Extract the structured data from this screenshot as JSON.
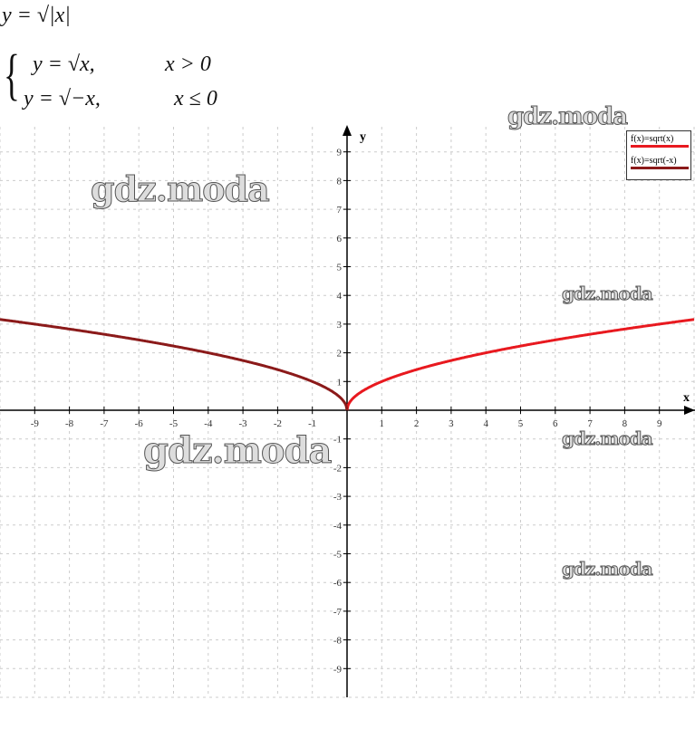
{
  "formulas": {
    "main": "y = √|x|",
    "case1_expr": "y = √x,",
    "case1_cond": "x > 0",
    "case2_expr": "y = √−x,",
    "case2_cond": "x ≤ 0"
  },
  "watermark": "gdz.moda",
  "chart_data": {
    "type": "line",
    "xlabel": "x",
    "ylabel": "y",
    "xlim": [
      -10,
      10
    ],
    "ylim": [
      -10,
      9.5
    ],
    "grid": true,
    "legend_placement": "top-right",
    "x_ticks": [
      -9,
      -8,
      -7,
      -6,
      -5,
      -4,
      -3,
      -2,
      -1,
      1,
      2,
      3,
      4,
      5,
      6,
      7,
      8,
      9
    ],
    "y_ticks": [
      -9,
      -8,
      -7,
      -6,
      -5,
      -4,
      -3,
      -2,
      -1,
      1,
      2,
      3,
      4,
      5,
      6,
      7,
      8,
      9
    ],
    "series": [
      {
        "name": "f(x)=sqrt(x)",
        "color": "#e8191f",
        "function": "sqrt(x)",
        "domain": [
          0,
          10
        ]
      },
      {
        "name": "f(x)=sqrt(-x)",
        "color": "#8b1a1a",
        "function": "sqrt(-x)",
        "domain": [
          -10,
          0
        ]
      }
    ]
  }
}
